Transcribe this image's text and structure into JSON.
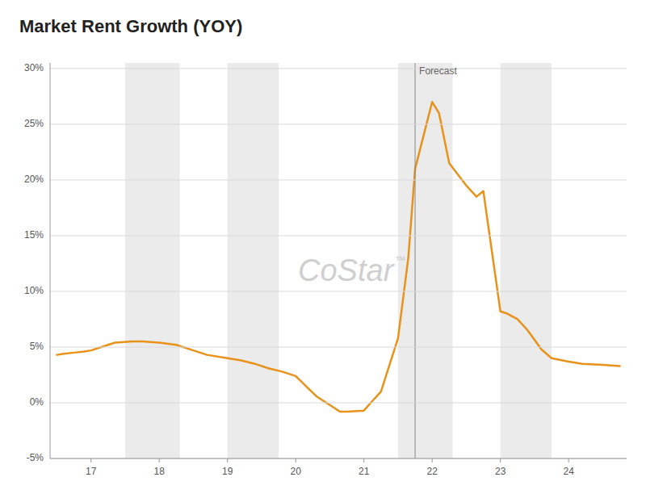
{
  "chart_data": {
    "type": "line",
    "title": "Market Rent Growth (YOY)",
    "color": "#E8921A",
    "grid": true,
    "x": [
      16.5,
      16.6,
      16.75,
      16.9,
      17.0,
      17.15,
      17.35,
      17.6,
      17.75,
      18.0,
      18.25,
      18.5,
      18.7,
      19.0,
      19.2,
      19.4,
      19.6,
      19.8,
      20.0,
      20.15,
      20.3,
      20.5,
      20.65,
      20.75,
      21.0,
      21.1,
      21.25,
      21.5,
      21.65,
      21.75,
      22.0,
      22.1,
      22.25,
      22.5,
      22.65,
      22.75,
      23.0,
      23.1,
      23.25,
      23.4,
      23.6,
      23.75,
      24.0,
      24.2,
      24.5,
      24.75
    ],
    "values": [
      0.043,
      0.044,
      0.045,
      0.046,
      0.047,
      0.05,
      0.054,
      0.055,
      0.055,
      0.054,
      0.052,
      0.047,
      0.043,
      0.04,
      0.038,
      0.035,
      0.031,
      0.028,
      0.024,
      0.015,
      0.006,
      -0.002,
      -0.008,
      -0.008,
      -0.007,
      0.0,
      0.01,
      0.058,
      0.13,
      0.21,
      0.27,
      0.26,
      0.215,
      0.195,
      0.185,
      0.19,
      0.082,
      0.08,
      0.075,
      0.065,
      0.048,
      0.04,
      0.037,
      0.035,
      0.034,
      0.033
    ],
    "xlim": [
      16.4,
      24.85
    ],
    "xticks": [
      17,
      18,
      19,
      20,
      21,
      22,
      23,
      24
    ],
    "ylim": [
      -0.05,
      0.305
    ],
    "yticks": [
      {
        "value": -0.05,
        "label": "-5%"
      },
      {
        "value": 0.0,
        "label": "0%"
      },
      {
        "value": 0.05,
        "label": "5%"
      },
      {
        "value": 0.1,
        "label": "10%"
      },
      {
        "value": 0.15,
        "label": "15%"
      },
      {
        "value": 0.2,
        "label": "20%"
      },
      {
        "value": 0.25,
        "label": "25%"
      },
      {
        "value": 0.3,
        "label": "30%"
      }
    ],
    "shaded_bands": [
      [
        17.5,
        18.3
      ],
      [
        19.0,
        19.75
      ],
      [
        21.5,
        22.3
      ],
      [
        23.0,
        23.75
      ]
    ],
    "annotations": [
      {
        "text": "Forecast",
        "x": 21.75
      },
      {
        "text": "CoStar"
      },
      {
        "text": "™"
      }
    ]
  }
}
